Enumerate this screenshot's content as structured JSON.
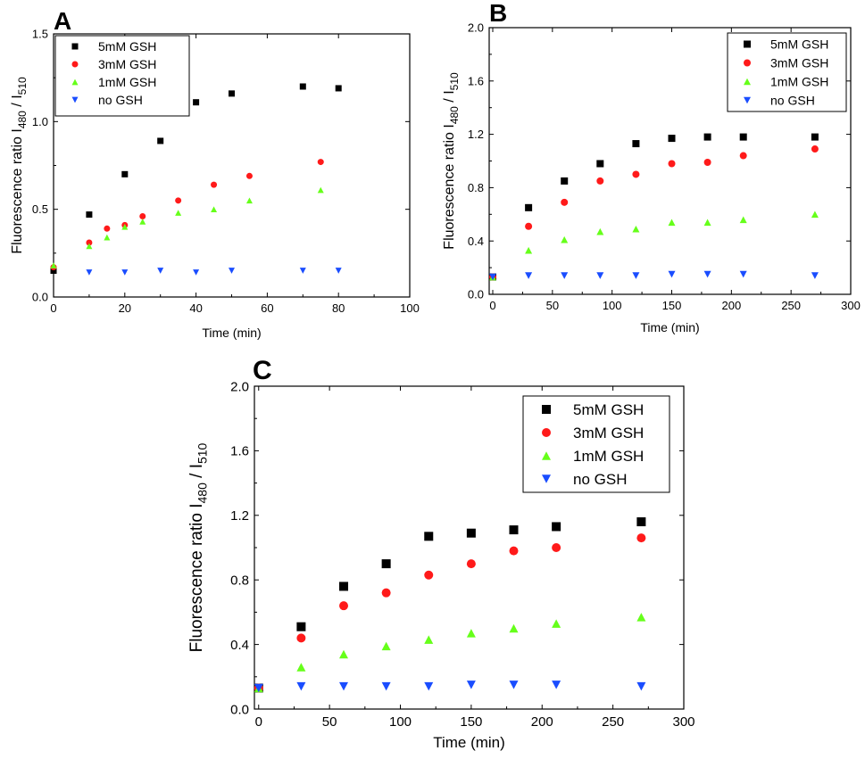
{
  "chart_data": [
    {
      "panel": "A",
      "type": "scatter",
      "xlabel": "Time (min)",
      "ylabel_main": "Fluorescence ratio I",
      "ylabel_sub1": "480",
      "ylabel_mid": " / I",
      "ylabel_sub2": "510",
      "xlim": [
        0,
        100
      ],
      "ylim": [
        0,
        1.5
      ],
      "xticks": [
        0,
        20,
        40,
        60,
        80,
        100
      ],
      "yticks": [
        0.0,
        0.5,
        1.0,
        1.5
      ],
      "ytick_labels": [
        "0.0",
        "0.5",
        "1.0",
        "1.5"
      ],
      "legend_position": "top-left",
      "series": [
        {
          "name": "5mM GSH",
          "marker": "square",
          "color": "#000000",
          "x": [
            0,
            10,
            20,
            30,
            40,
            50,
            70,
            80
          ],
          "y": [
            0.15,
            0.47,
            0.7,
            0.89,
            1.11,
            1.16,
            1.2,
            1.19
          ]
        },
        {
          "name": "3mM GSH",
          "marker": "circle",
          "color": "#ff1a1a",
          "x": [
            0,
            10,
            15,
            20,
            25,
            35,
            45,
            55,
            75
          ],
          "y": [
            0.17,
            0.31,
            0.39,
            0.41,
            0.46,
            0.55,
            0.64,
            0.69,
            0.77
          ]
        },
        {
          "name": "1mM GSH",
          "marker": "triangle-up",
          "color": "#66ff1a",
          "x": [
            0,
            10,
            15,
            20,
            25,
            35,
            45,
            55,
            75
          ],
          "y": [
            0.18,
            0.29,
            0.34,
            0.4,
            0.43,
            0.48,
            0.5,
            0.55,
            0.61
          ]
        },
        {
          "name": "no GSH",
          "marker": "triangle-down",
          "color": "#1a4dff",
          "x": [
            10,
            20,
            30,
            40,
            50,
            70,
            80
          ],
          "y": [
            0.14,
            0.14,
            0.15,
            0.14,
            0.15,
            0.15,
            0.15
          ]
        }
      ]
    },
    {
      "panel": "B",
      "type": "scatter",
      "xlabel": "Time (min)",
      "ylabel_main": "Fluorescence ratio I",
      "ylabel_sub1": "480",
      "ylabel_mid": " / I",
      "ylabel_sub2": "510",
      "xlim": [
        -3,
        300
      ],
      "ylim": [
        0,
        2.0
      ],
      "xticks": [
        0,
        50,
        100,
        150,
        200,
        250,
        300
      ],
      "yticks": [
        0.0,
        0.4,
        0.8,
        1.2,
        1.6,
        2.0
      ],
      "ytick_labels": [
        "0.0",
        "0.4",
        "0.8",
        "1.2",
        "1.6",
        "2.0"
      ],
      "legend_position": "top-right",
      "series": [
        {
          "name": "5mM GSH",
          "marker": "square",
          "color": "#000000",
          "x": [
            0,
            30,
            60,
            90,
            120,
            150,
            180,
            210,
            270
          ],
          "y": [
            0.13,
            0.65,
            0.85,
            0.98,
            1.13,
            1.17,
            1.18,
            1.18,
            1.18
          ]
        },
        {
          "name": "3mM GSH",
          "marker": "circle",
          "color": "#ff1a1a",
          "x": [
            0,
            30,
            60,
            90,
            120,
            150,
            180,
            210,
            270
          ],
          "y": [
            0.13,
            0.51,
            0.69,
            0.85,
            0.9,
            0.98,
            0.99,
            1.04,
            1.09
          ]
        },
        {
          "name": "1mM GSH",
          "marker": "triangle-up",
          "color": "#66ff1a",
          "x": [
            0,
            30,
            60,
            90,
            120,
            150,
            180,
            210,
            270
          ],
          "y": [
            0.13,
            0.33,
            0.41,
            0.47,
            0.49,
            0.54,
            0.54,
            0.56,
            0.6
          ]
        },
        {
          "name": "no GSH",
          "marker": "triangle-down",
          "color": "#1a4dff",
          "x": [
            0,
            30,
            60,
            90,
            120,
            150,
            180,
            210,
            270
          ],
          "y": [
            0.13,
            0.14,
            0.14,
            0.14,
            0.14,
            0.15,
            0.15,
            0.15,
            0.14
          ]
        }
      ]
    },
    {
      "panel": "C",
      "type": "scatter",
      "xlabel": "Time (min)",
      "ylabel_main": "Fluorescence ratio I",
      "ylabel_sub1": "480",
      "ylabel_mid": " / I",
      "ylabel_sub2": "510",
      "xlim": [
        -3,
        300
      ],
      "ylim": [
        0,
        2.0
      ],
      "xticks": [
        0,
        50,
        100,
        150,
        200,
        250,
        300
      ],
      "yticks": [
        0.0,
        0.4,
        0.8,
        1.2,
        1.6,
        2.0
      ],
      "ytick_labels": [
        "0.0",
        "0.4",
        "0.8",
        "1.2",
        "1.6",
        "2.0"
      ],
      "legend_position": "top-right",
      "series": [
        {
          "name": "5mM GSH",
          "marker": "square",
          "color": "#000000",
          "x": [
            0,
            30,
            60,
            90,
            120,
            150,
            180,
            210,
            270
          ],
          "y": [
            0.13,
            0.51,
            0.76,
            0.9,
            1.07,
            1.09,
            1.11,
            1.13,
            1.16
          ]
        },
        {
          "name": "3mM GSH",
          "marker": "circle",
          "color": "#ff1a1a",
          "x": [
            0,
            30,
            60,
            90,
            120,
            150,
            180,
            210,
            270
          ],
          "y": [
            0.13,
            0.44,
            0.64,
            0.72,
            0.83,
            0.9,
            0.98,
            1.0,
            1.06
          ]
        },
        {
          "name": "1mM GSH",
          "marker": "triangle-up",
          "color": "#66ff1a",
          "x": [
            0,
            30,
            60,
            90,
            120,
            150,
            180,
            210,
            270
          ],
          "y": [
            0.13,
            0.26,
            0.34,
            0.39,
            0.43,
            0.47,
            0.5,
            0.53,
            0.57
          ]
        },
        {
          "name": "no GSH",
          "marker": "triangle-down",
          "color": "#1a4dff",
          "x": [
            0,
            30,
            60,
            90,
            120,
            150,
            180,
            210,
            270
          ],
          "y": [
            0.13,
            0.14,
            0.14,
            0.14,
            0.14,
            0.15,
            0.15,
            0.15,
            0.14
          ]
        }
      ]
    }
  ]
}
